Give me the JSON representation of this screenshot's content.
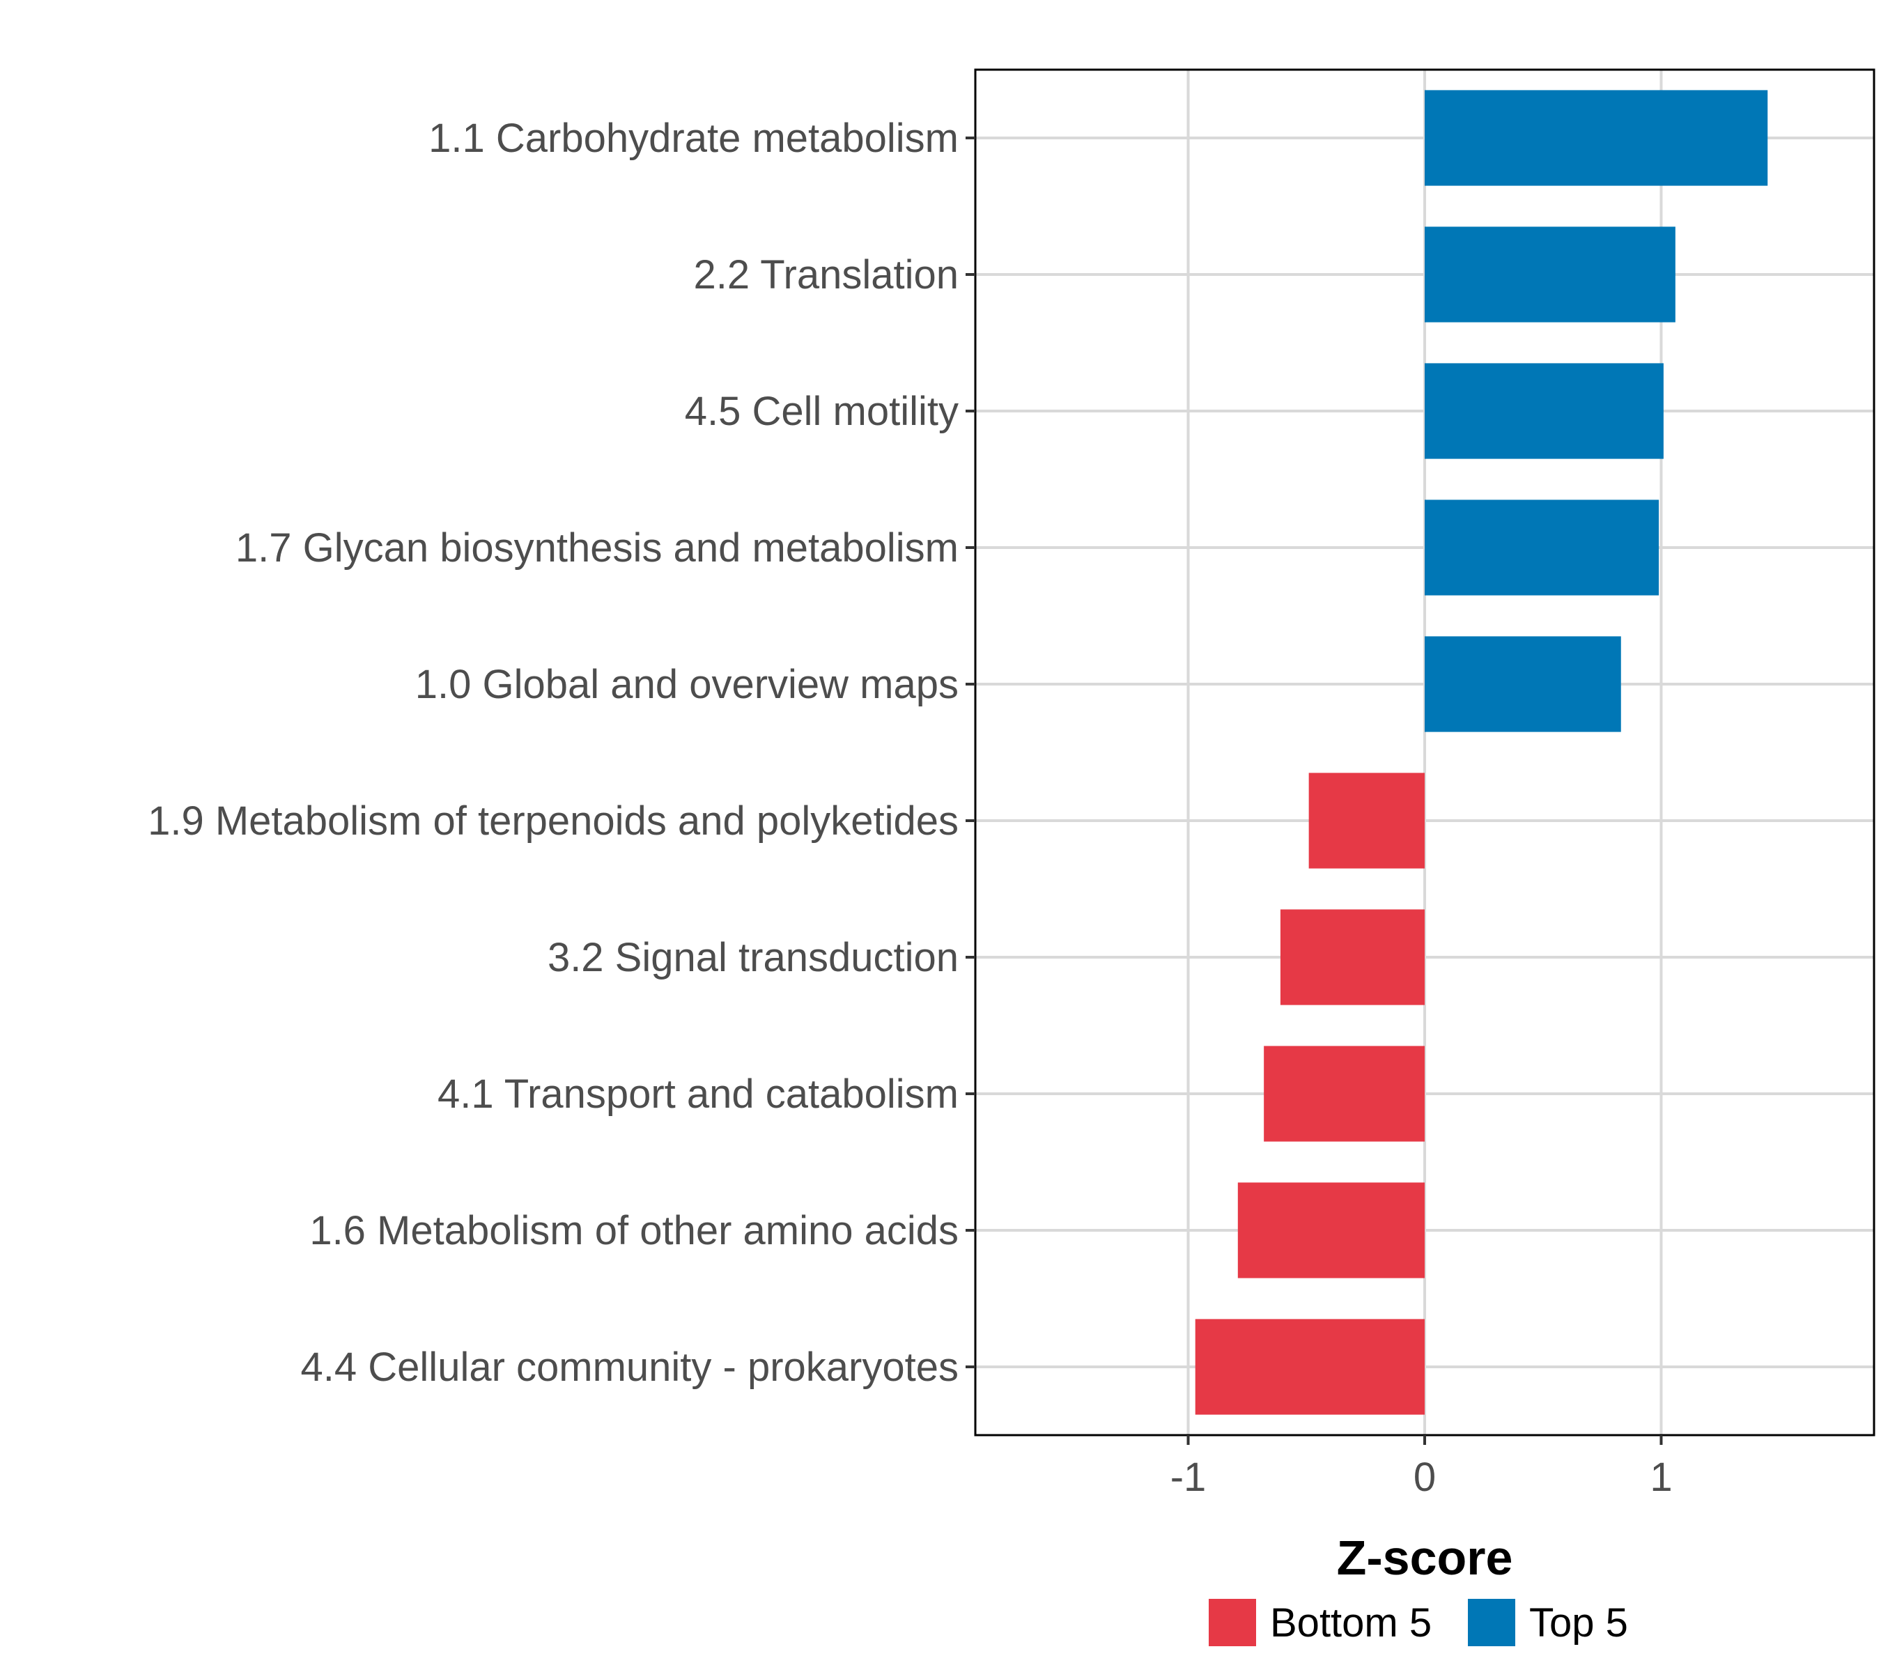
{
  "chart_data": {
    "type": "bar",
    "orientation": "horizontal",
    "title": "",
    "xlabel": "Z-score",
    "ylabel": "",
    "xlim": [
      -1.9,
      1.9
    ],
    "x_ticks": [
      -1,
      0,
      1
    ],
    "x_tick_labels": [
      "-1",
      "0",
      "1"
    ],
    "grid": true,
    "legend_position": "bottom",
    "categories": [
      "1.1 Carbohydrate metabolism",
      "2.2 Translation",
      "4.5 Cell motility",
      "1.7 Glycan biosynthesis and metabolism",
      "1.0 Global and overview maps",
      "1.9 Metabolism of terpenoids and polyketides",
      "3.2 Signal transduction",
      "4.1 Transport and catabolism",
      "1.6 Metabolism of other amino acids",
      "4.4 Cellular community - prokaryotes"
    ],
    "values": [
      1.45,
      1.06,
      1.01,
      0.99,
      0.83,
      -0.49,
      -0.61,
      -0.68,
      -0.79,
      -0.97
    ],
    "groups": [
      "Top 5",
      "Top 5",
      "Top 5",
      "Top 5",
      "Top 5",
      "Bottom 5",
      "Bottom 5",
      "Bottom 5",
      "Bottom 5",
      "Bottom 5"
    ],
    "legend": [
      {
        "name": "Bottom 5",
        "color": "#e63946"
      },
      {
        "name": "Top 5",
        "color": "#0077b6"
      }
    ],
    "colors": {
      "Top 5": "#0077b6",
      "Bottom 5": "#e63946"
    }
  }
}
